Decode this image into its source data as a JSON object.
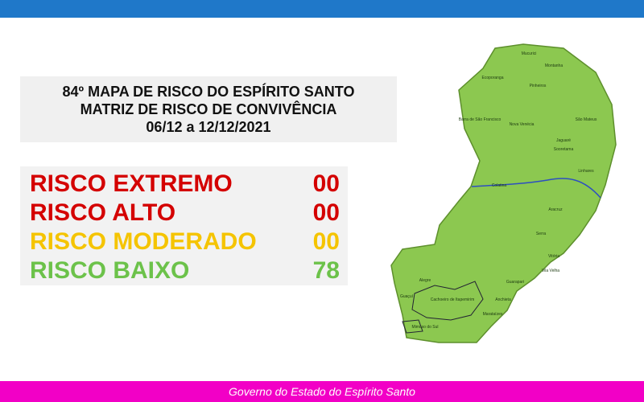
{
  "header": {
    "lines": [
      "84º MAPA DE RISCO DO ESPÍRITO SANTO",
      "MATRIZ DE RISCO DE CONVIVÊNCIA",
      "06/12 a 12/12/2021"
    ]
  },
  "risks": [
    {
      "label": "RISCO EXTREMO",
      "count": "00",
      "color": "#d40000"
    },
    {
      "label": "RISCO ALTO",
      "count": "00",
      "color": "#d40000"
    },
    {
      "label": "RISCO MODERADO",
      "count": "00",
      "color": "#f5c400"
    },
    {
      "label": "RISCO BAIXO",
      "count": "78",
      "color": "#6cc24a"
    }
  ],
  "map": {
    "labels": [
      "Mucurici",
      "Montanha",
      "Pinheiros",
      "São Mateus",
      "Jaguaré",
      "Sooretama",
      "Linhares",
      "Colatina",
      "Aracruz",
      "Serra",
      "Vitória",
      "Vila Velha",
      "Guarapari",
      "Anchieta",
      "Cachoeiro de Itapemirim",
      "Mimoso do Sul",
      "Marataízes",
      "Alegre",
      "Guaçuí",
      "Ecoporanga",
      "Barra de São Francisco",
      "Nova Venécia"
    ]
  },
  "footer": {
    "text": "Governo do Estado do Espírito Santo"
  }
}
